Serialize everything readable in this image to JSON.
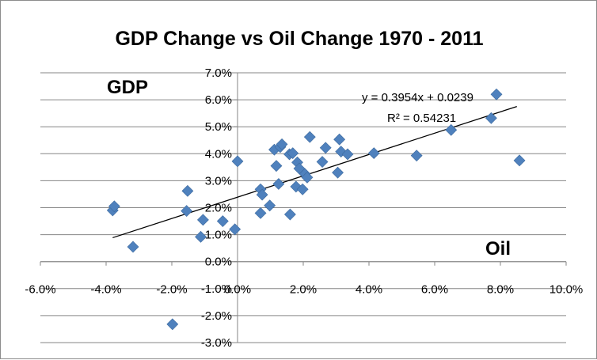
{
  "chart_data": {
    "type": "scatter",
    "title": "GDP Change vs Oil Change 1970 - 2011",
    "xlabel": "",
    "ylabel": "",
    "annotations": {
      "gdp_label": "GDP",
      "oil_label": "Oil"
    },
    "xlim": [
      -0.06,
      0.1
    ],
    "ylim": [
      -0.03,
      0.07
    ],
    "x_ticks": [
      -0.06,
      -0.04,
      -0.02,
      0.0,
      0.02,
      0.04,
      0.06,
      0.08,
      0.1
    ],
    "x_tick_labels": [
      "-6.0%",
      "-4.0%",
      "-2.0%",
      "0.0%",
      "2.0%",
      "4.0%",
      "6.0%",
      "8.0%",
      "10.0%"
    ],
    "y_ticks": [
      -0.03,
      -0.02,
      -0.01,
      0.0,
      0.01,
      0.02,
      0.03,
      0.04,
      0.05,
      0.06,
      0.07
    ],
    "y_tick_labels": [
      "-3.0%",
      "-2.0%",
      "-1.0%",
      "0.0%",
      "1.0%",
      "2.0%",
      "3.0%",
      "4.0%",
      "5.0%",
      "6.0%",
      "7.0%"
    ],
    "grid": true,
    "marker_color": "#4f81bd",
    "trendline": {
      "slope": 0.3954,
      "intercept": 0.0239,
      "x_range": [
        -0.038,
        0.085
      ],
      "equation_text": "y = 0.3954x + 0.0239",
      "r2_text": "R² = 0.54231"
    },
    "points": [
      {
        "x": -0.038,
        "y": 0.019
      },
      {
        "x": -0.0375,
        "y": 0.0205
      },
      {
        "x": -0.0318,
        "y": 0.0055
      },
      {
        "x": -0.0198,
        "y": -0.0232
      },
      {
        "x": -0.0155,
        "y": 0.0188
      },
      {
        "x": -0.0152,
        "y": 0.0262
      },
      {
        "x": -0.0112,
        "y": 0.0092
      },
      {
        "x": -0.0105,
        "y": 0.0155
      },
      {
        "x": -0.0045,
        "y": 0.015
      },
      {
        "x": -0.0008,
        "y": 0.012
      },
      {
        "x": 0.0,
        "y": 0.0372
      },
      {
        "x": 0.007,
        "y": 0.018
      },
      {
        "x": 0.007,
        "y": 0.0268
      },
      {
        "x": 0.0075,
        "y": 0.0248
      },
      {
        "x": 0.0098,
        "y": 0.0208
      },
      {
        "x": 0.0112,
        "y": 0.0415
      },
      {
        "x": 0.0118,
        "y": 0.0355
      },
      {
        "x": 0.0125,
        "y": 0.0288
      },
      {
        "x": 0.013,
        "y": 0.0425
      },
      {
        "x": 0.0135,
        "y": 0.0435
      },
      {
        "x": 0.0158,
        "y": 0.0398
      },
      {
        "x": 0.016,
        "y": 0.0175
      },
      {
        "x": 0.0168,
        "y": 0.0402
      },
      {
        "x": 0.0178,
        "y": 0.0278
      },
      {
        "x": 0.0182,
        "y": 0.0368
      },
      {
        "x": 0.0188,
        "y": 0.0345
      },
      {
        "x": 0.0198,
        "y": 0.0268
      },
      {
        "x": 0.0205,
        "y": 0.0325
      },
      {
        "x": 0.0212,
        "y": 0.0312
      },
      {
        "x": 0.022,
        "y": 0.0462
      },
      {
        "x": 0.0258,
        "y": 0.037
      },
      {
        "x": 0.0268,
        "y": 0.0422
      },
      {
        "x": 0.0305,
        "y": 0.033
      },
      {
        "x": 0.031,
        "y": 0.0453
      },
      {
        "x": 0.0315,
        "y": 0.0408
      },
      {
        "x": 0.0335,
        "y": 0.0398
      },
      {
        "x": 0.0415,
        "y": 0.0402
      },
      {
        "x": 0.0545,
        "y": 0.0393
      },
      {
        "x": 0.065,
        "y": 0.0488
      },
      {
        "x": 0.0772,
        "y": 0.0532
      },
      {
        "x": 0.0788,
        "y": 0.062
      },
      {
        "x": 0.0858,
        "y": 0.0375
      }
    ]
  }
}
